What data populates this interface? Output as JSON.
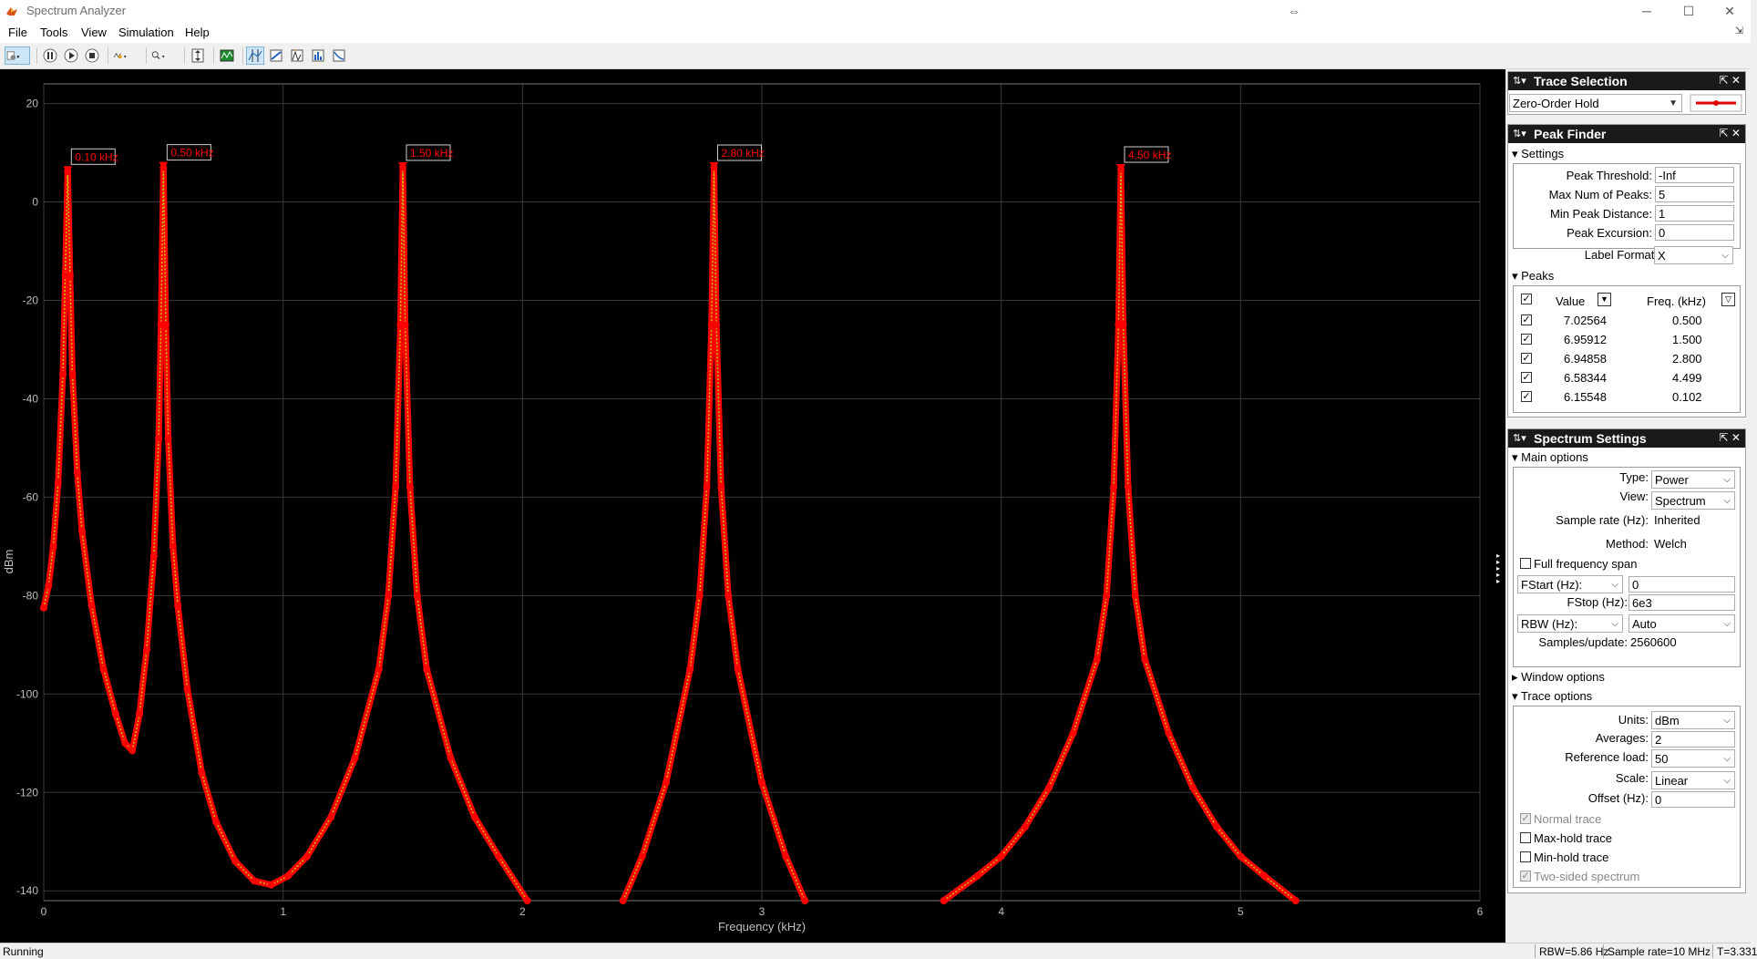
{
  "window": {
    "title": "Spectrum Analyzer"
  },
  "menu": [
    "File",
    "Tools",
    "View",
    "Simulation",
    "Help"
  ],
  "toolbar": {
    "icons": [
      "configuration-icon",
      "pause-icon",
      "play-icon",
      "stop-icon",
      "signal-selection-icon",
      "zoom-icon",
      "scale-axes-icon",
      "spectrum-settings-icon",
      "cursor-measurement-icon",
      "peak-finder-icon",
      "channel-measurement-icon",
      "distortion-icon",
      "ccdf-icon"
    ]
  },
  "chart_data": {
    "type": "line",
    "xlabel": "Frequency (kHz)",
    "ylabel": "dBm",
    "xlim": [
      0,
      6
    ],
    "ylim": [
      -142,
      24
    ],
    "xticks": [
      0,
      1,
      2,
      3,
      4,
      5,
      6
    ],
    "yticks": [
      20,
      0,
      -20,
      -40,
      -60,
      -80,
      -100,
      -120,
      -140
    ],
    "grid": true,
    "trace_color": "#ff0000",
    "line_color": "#c8c800",
    "peak_label_color": "#ff0000",
    "peaks": [
      {
        "freq": 0.1,
        "value": 6.15548,
        "label": "0.10 kHz"
      },
      {
        "freq": 0.5,
        "value": 7.02564,
        "label": "0.50 kHz"
      },
      {
        "freq": 1.5,
        "value": 6.95912,
        "label": "1.50 kHz"
      },
      {
        "freq": 2.8,
        "value": 6.94858,
        "label": "2.80 kHz"
      },
      {
        "freq": 4.5,
        "value": 6.58344,
        "label": "4.50 kHz"
      }
    ],
    "series": [
      {
        "x": [
          0.0,
          0.02,
          0.04,
          0.06,
          0.08,
          0.09,
          0.1,
          0.11,
          0.12,
          0.14,
          0.16,
          0.2,
          0.25,
          0.3,
          0.34,
          0.37,
          0.4,
          0.43,
          0.46,
          0.48,
          0.49,
          0.5,
          0.51,
          0.52,
          0.54,
          0.56,
          0.6,
          0.66,
          0.72,
          0.8,
          0.88,
          0.95,
          1.02,
          1.1,
          1.2,
          1.3,
          1.4,
          1.44,
          1.47,
          1.49,
          1.5,
          1.51,
          1.53,
          1.56,
          1.6,
          1.7,
          1.8,
          1.9,
          2.02
        ],
        "y": [
          -82.5,
          -78,
          -70,
          -57,
          -35,
          -15,
          6.2,
          -15,
          -35,
          -55,
          -67,
          -82,
          -95,
          -104,
          -110,
          -111.5,
          -104,
          -91,
          -72,
          -48,
          -25,
          7,
          -25,
          -48,
          -70,
          -82,
          -99,
          -116,
          -126,
          -134,
          -138,
          -138.8,
          -137,
          -133,
          -125,
          -113,
          -95,
          -80,
          -58,
          -25,
          7,
          -25,
          -58,
          -80,
          -95,
          -113,
          -125,
          -133,
          -142
        ]
      },
      {
        "x": [
          2.42,
          2.5,
          2.6,
          2.7,
          2.74,
          2.77,
          2.79,
          2.8,
          2.81,
          2.83,
          2.86,
          2.9,
          3.0,
          3.1,
          3.18
        ],
        "y": [
          -142,
          -133,
          -118,
          -95,
          -80,
          -58,
          -25,
          7,
          -25,
          -58,
          -80,
          -95,
          -118,
          -133,
          -142
        ]
      },
      {
        "x": [
          3.76,
          3.9,
          4.0,
          4.1,
          4.2,
          4.3,
          4.4,
          4.44,
          4.47,
          4.49,
          4.5,
          4.51,
          4.53,
          4.56,
          4.6,
          4.7,
          4.8,
          4.9,
          5.0,
          5.1,
          5.23
        ],
        "y": [
          -142,
          -137,
          -133,
          -127,
          -119,
          -108,
          -93,
          -80,
          -58,
          -25,
          6.6,
          -25,
          -58,
          -80,
          -93,
          -108,
          -119,
          -127,
          -133,
          -137,
          -142
        ]
      }
    ]
  },
  "trace_selection": {
    "title": "Trace Selection",
    "selected": "Zero-Order Hold",
    "trace_color": "#e00000"
  },
  "peak_finder": {
    "title": "Peak Finder",
    "settings_label": "Settings",
    "settings": [
      {
        "label": "Peak Threshold:",
        "value": "-Inf"
      },
      {
        "label": "Max Num of Peaks:",
        "value": "5"
      },
      {
        "label": "Min Peak Distance:",
        "value": "1"
      },
      {
        "label": "Peak Excursion:",
        "value": "0"
      }
    ],
    "label_format_label": "Label Format:",
    "label_format": "X",
    "peaks_label": "Peaks",
    "col_value": "Value",
    "col_freq": "Freq. (kHz)",
    "rows": [
      {
        "value": "7.02564",
        "freq": "0.500"
      },
      {
        "value": "6.95912",
        "freq": "1.500"
      },
      {
        "value": "6.94858",
        "freq": "2.800"
      },
      {
        "value": "6.58344",
        "freq": "4.499"
      },
      {
        "value": "6.15548",
        "freq": "0.102"
      }
    ]
  },
  "spectrum_settings": {
    "title": "Spectrum Settings",
    "main_options": "Main options",
    "type_label": "Type:",
    "type": "Power",
    "view_label": "View:",
    "view": "Spectrum",
    "sample_rate_label": "Sample rate (Hz):",
    "sample_rate": "Inherited",
    "method_label": "Method:",
    "method": "Welch",
    "full_span_label": "Full frequency span",
    "fstart_label": "FStart (Hz):",
    "fstart": "0",
    "fstop_label": "FStop (Hz):",
    "fstop": "6e3",
    "rbw_label": "RBW (Hz):",
    "rbw": "Auto",
    "samples_label": "Samples/update:",
    "samples": "2560600",
    "window_options": "Window options",
    "trace_options": "Trace options",
    "units_label": "Units:",
    "units": "dBm",
    "averages_label": "Averages:",
    "averages": "2",
    "refload_label": "Reference load:",
    "refload": "50",
    "scale_label": "Scale:",
    "scale": "Linear",
    "offset_label": "Offset (Hz):",
    "offset": "0",
    "normal_trace": "Normal trace",
    "maxhold_trace": "Max-hold trace",
    "minhold_trace": "Min-hold trace",
    "two_sided": "Two-sided spectrum"
  },
  "status": {
    "state": "Running",
    "rbw": "RBW=5.86 Hz",
    "sample_rate": "Sample rate=10 MHz",
    "time": "T=3.331"
  }
}
